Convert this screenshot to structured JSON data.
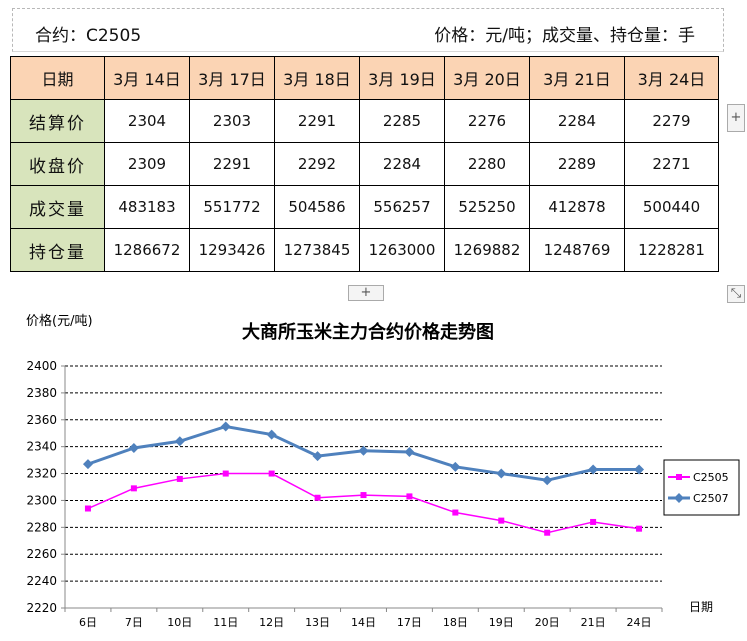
{
  "header": {
    "contract": "合约：C2505",
    "units": "价格：元/吨；成交量、持仓量：手"
  },
  "table": {
    "date_header": "日期",
    "dates": [
      "3月 14日",
      "3月 17日",
      "3月 18日",
      "3月 19日",
      "3月 20日",
      "3月 21日",
      "3月 24日"
    ],
    "rows": [
      {
        "label": "结算价",
        "values": [
          "2304",
          "2303",
          "2291",
          "2285",
          "2276",
          "2284",
          "2279"
        ]
      },
      {
        "label": "收盘价",
        "values": [
          "2309",
          "2291",
          "2292",
          "2284",
          "2280",
          "2289",
          "2271"
        ]
      },
      {
        "label": "成交量",
        "values": [
          "483183",
          "551772",
          "504586",
          "556257",
          "525250",
          "412878",
          "500440"
        ]
      },
      {
        "label": "持仓量",
        "values": [
          "1286672",
          "1293426",
          "1273845",
          "1263000",
          "1269882",
          "1248769",
          "1228281"
        ]
      }
    ]
  },
  "controls": {
    "add_row": "+",
    "add_column": "+",
    "resize": "⤡"
  },
  "chart_data": {
    "type": "line",
    "title": "大商所玉米主力合约价格走势图",
    "ylabel": "价格(元/吨)",
    "xlabel": "日期",
    "categories": [
      "6日",
      "7日",
      "10日",
      "11日",
      "12日",
      "13日",
      "14日",
      "17日",
      "18日",
      "19日",
      "20日",
      "21日",
      "24日"
    ],
    "ylim": [
      2220,
      2400
    ],
    "yticks": [
      2220,
      2240,
      2260,
      2280,
      2300,
      2320,
      2340,
      2360,
      2380,
      2400
    ],
    "grid": true,
    "legend_position": "right",
    "series": [
      {
        "name": "C2505",
        "color": "#ff00ff",
        "marker": "square",
        "values": [
          2294,
          2309,
          2316,
          2320,
          2320,
          2302,
          2304,
          2303,
          2291,
          2285,
          2276,
          2284,
          2279
        ]
      },
      {
        "name": "C2507",
        "color": "#4f81bd",
        "marker": "diamond",
        "values": [
          2327,
          2339,
          2344,
          2355,
          2349,
          2333,
          2337,
          2336,
          2325,
          2320,
          2315,
          2323,
          2323
        ]
      }
    ]
  }
}
